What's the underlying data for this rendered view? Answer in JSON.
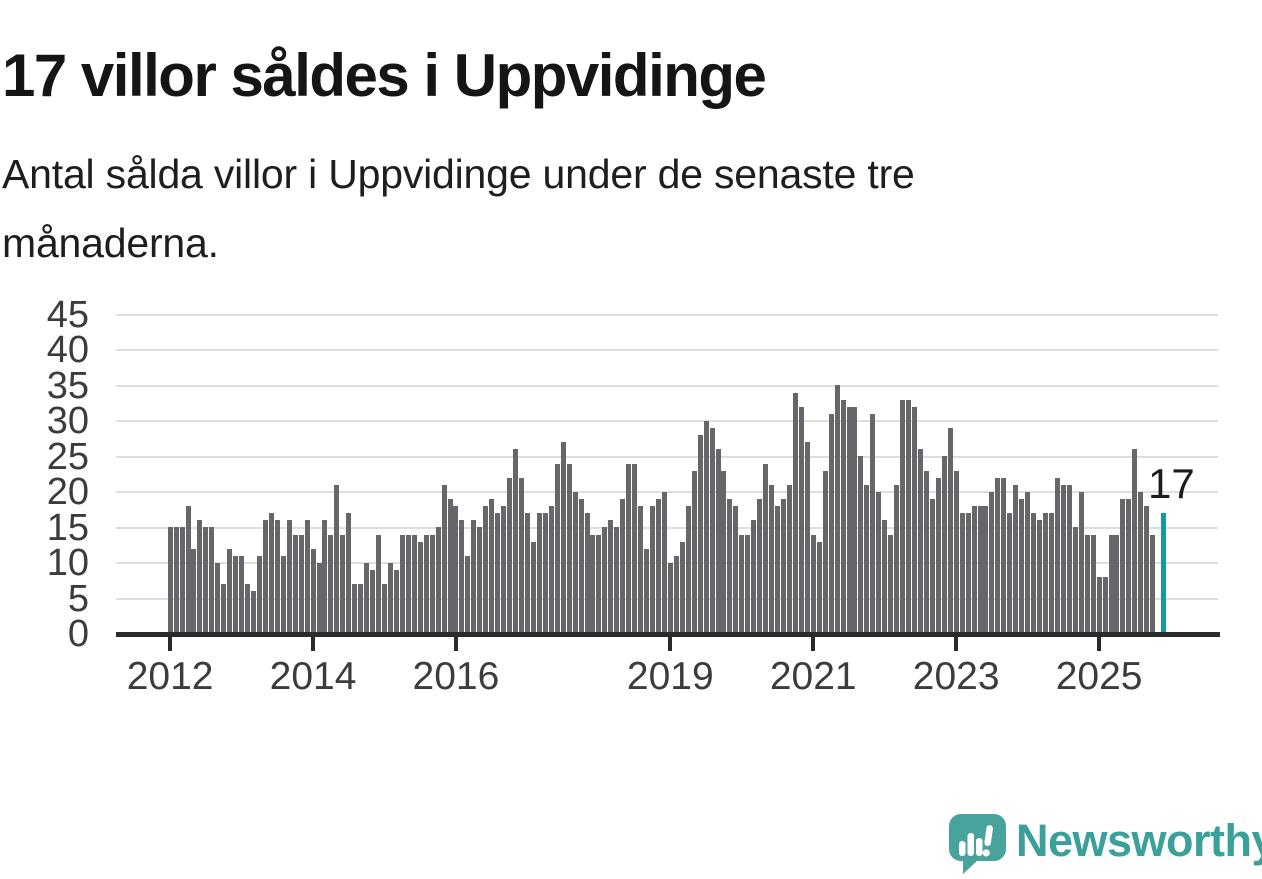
{
  "page": {
    "title": "17 villor såldes i Uppvidinge",
    "subtitle_line1": "Antal sålda villor i Uppvidinge under de senaste tre",
    "subtitle_line2": "månaderna."
  },
  "branding": {
    "wordmark": "Newsworthy",
    "logo_icon": "bar-chart-exclamation-speech-bubble"
  },
  "chart_data": {
    "type": "bar",
    "title": "17 villor såldes i Uppvidinge",
    "description": "Antal sålda villor i Uppvidinge under de senaste tre månaderna.",
    "frequency": "monthly",
    "start_month": "2012-01",
    "values": [
      15,
      15,
      15,
      18,
      12,
      16,
      15,
      15,
      10,
      7,
      12,
      11,
      11,
      7,
      6,
      11,
      16,
      17,
      16,
      11,
      16,
      14,
      14,
      16,
      12,
      10,
      16,
      14,
      21,
      14,
      17,
      7,
      7,
      10,
      9,
      14,
      7,
      10,
      9,
      14,
      14,
      14,
      13,
      14,
      14,
      15,
      21,
      19,
      18,
      16,
      11,
      16,
      15,
      18,
      19,
      17,
      18,
      22,
      26,
      22,
      17,
      13,
      17,
      17,
      18,
      24,
      27,
      24,
      20,
      19,
      17,
      14,
      14,
      15,
      16,
      15,
      19,
      24,
      24,
      18,
      12,
      18,
      19,
      20,
      10,
      11,
      13,
      18,
      23,
      28,
      30,
      29,
      26,
      23,
      19,
      18,
      14,
      14,
      16,
      19,
      24,
      21,
      18,
      19,
      21,
      34,
      32,
      27,
      14,
      13,
      23,
      31,
      35,
      33,
      32,
      32,
      25,
      21,
      31,
      20,
      16,
      14,
      21,
      33,
      33,
      32,
      26,
      23,
      19,
      22,
      25,
      29,
      23,
      17,
      17,
      18,
      18,
      18,
      20,
      22,
      22,
      17,
      21,
      19,
      20,
      17,
      16,
      17,
      17,
      22,
      21,
      21,
      15,
      20,
      14,
      14,
      8,
      8,
      14,
      14,
      19,
      19,
      26,
      20,
      18,
      14,
      17
    ],
    "highlight": {
      "index": 166,
      "value": 17,
      "label": "17"
    },
    "x_axis": {
      "tick_labels": [
        "2012",
        "2014",
        "2016",
        "2019",
        "2021",
        "2023",
        "2025"
      ],
      "tick_month_indices": [
        0,
        24,
        48,
        84,
        108,
        132,
        156
      ]
    },
    "y_axis": {
      "ticks": [
        0,
        5,
        10,
        15,
        20,
        25,
        30,
        35,
        40,
        45
      ],
      "range": [
        0,
        45
      ],
      "gridlines": true
    },
    "legend": "none",
    "colors": {
      "bar": "#67676b",
      "highlight": "#129d9b",
      "axis": "#2b2b2b",
      "gridline": "#dedede",
      "tick_label": "#3c3c3c",
      "annotation": "#1c1c1c",
      "logo": "#3ba09a",
      "background": "#ffffff"
    }
  }
}
